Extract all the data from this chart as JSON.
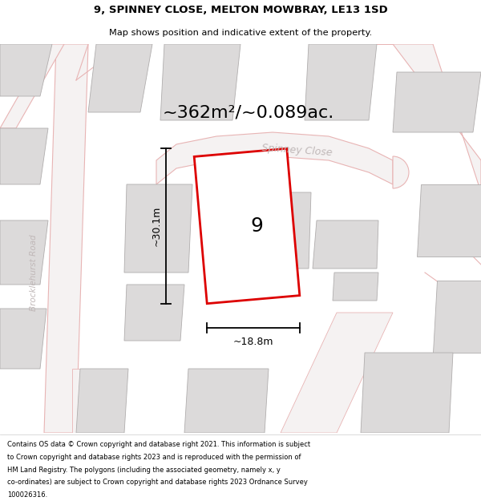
{
  "title_line1": "9, SPINNEY CLOSE, MELTON MOWBRAY, LE13 1SD",
  "title_line2": "Map shows position and indicative extent of the property.",
  "area_text": "~362m²/~0.089ac.",
  "property_number": "9",
  "dim_height": "~30.1m",
  "dim_width": "~18.8m",
  "street_name": "Spinney Close",
  "road_name": "Brocklehurst Road",
  "footer_lines": [
    "Contains OS data © Crown copyright and database right 2021. This information is subject",
    "to Crown copyright and database rights 2023 and is reproduced with the permission of",
    "HM Land Registry. The polygons (including the associated geometry, namely x, y",
    "co-ordinates) are subject to Crown copyright and database rights 2023 Ordnance Survey",
    "100026316."
  ],
  "map_bg": "#f7f6f6",
  "building_face": "#dcdada",
  "building_edge": "#b0adad",
  "road_line_color": "#e8b4b4",
  "property_outline_color": "#dd0000",
  "dim_color": "#111111",
  "street_label_color": "#c0b8b8",
  "road_label_color": "#c0b8b8"
}
